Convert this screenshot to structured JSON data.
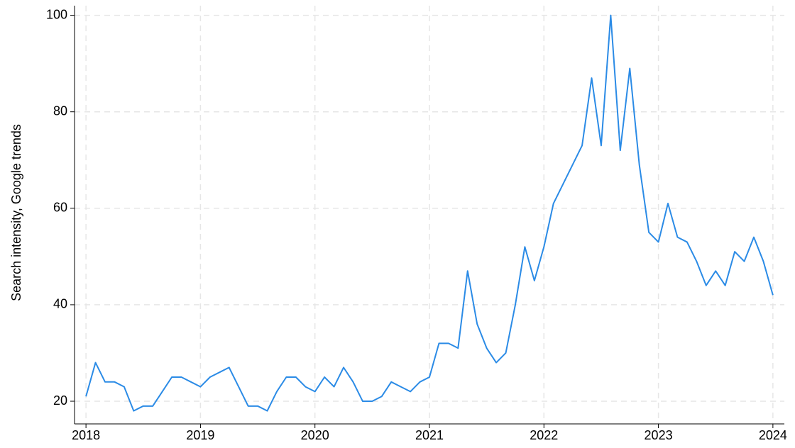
{
  "chart_data": {
    "type": "line",
    "y_label": "Search intensity, Google trends",
    "x": [
      2018,
      2018.0833,
      2018.1667,
      2018.25,
      2018.3333,
      2018.4167,
      2018.5,
      2018.5833,
      2018.6667,
      2018.75,
      2018.8333,
      2018.9167,
      2019,
      2019.0833,
      2019.1667,
      2019.25,
      2019.3333,
      2019.4167,
      2019.5,
      2019.5833,
      2019.6667,
      2019.75,
      2019.8333,
      2019.9167,
      2020,
      2020.0833,
      2020.1667,
      2020.25,
      2020.3333,
      2020.4167,
      2020.5,
      2020.5833,
      2020.6667,
      2020.75,
      2020.8333,
      2020.9167,
      2021,
      2021.0833,
      2021.1667,
      2021.25,
      2021.3333,
      2021.4167,
      2021.5,
      2021.5833,
      2021.6667,
      2021.75,
      2021.8333,
      2021.9167,
      2022,
      2022.0833,
      2022.1667,
      2022.25,
      2022.3333,
      2022.4167,
      2022.5,
      2022.5833,
      2022.6667,
      2022.75,
      2022.8333,
      2022.9167,
      2023,
      2023.0833,
      2023.1667,
      2023.25,
      2023.3333,
      2023.4167,
      2023.5,
      2023.5833,
      2023.6667,
      2023.75,
      2023.8333,
      2023.9167,
      2024
    ],
    "series": [
      {
        "name": "Search intensity",
        "color": "#2b8be6",
        "values": [
          21,
          28,
          24,
          24,
          23,
          18,
          19,
          19,
          22,
          25,
          25,
          24,
          23,
          25,
          26,
          27,
          23,
          19,
          19,
          18,
          22,
          25,
          25,
          23,
          22,
          25,
          23,
          27,
          24,
          20,
          20,
          21,
          24,
          23,
          22,
          24,
          25,
          32,
          32,
          31,
          47,
          36,
          31,
          28,
          30,
          40,
          52,
          45,
          52,
          61,
          65,
          69,
          73,
          87,
          73,
          100,
          72,
          89,
          69,
          55,
          53,
          61,
          54,
          53,
          49,
          44,
          47,
          44,
          51,
          49,
          54,
          49,
          42
        ]
      }
    ],
    "xlim": [
      2017.9,
      2024.1
    ],
    "xticks": [
      2018,
      2019,
      2020,
      2021,
      2022,
      2023,
      2024
    ],
    "ylim": [
      15.3,
      102
    ],
    "yticks": [
      20,
      40,
      60,
      80,
      100
    ],
    "grid": true
  }
}
